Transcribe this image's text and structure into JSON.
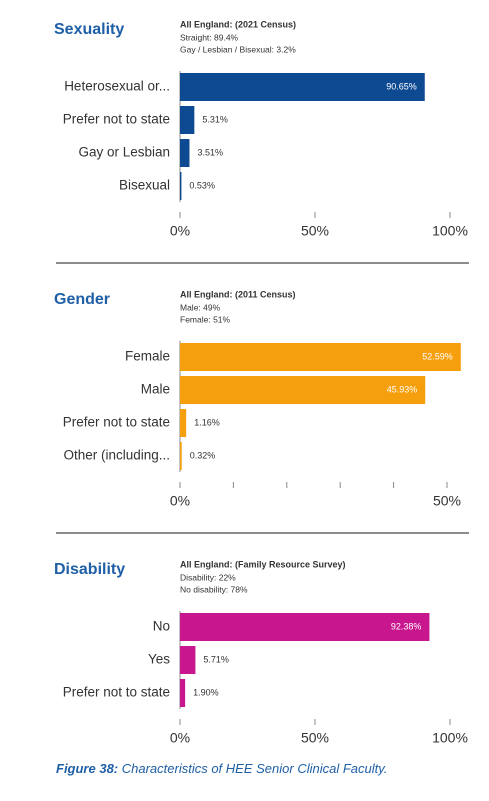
{
  "chart_data": [
    {
      "type": "bar",
      "orientation": "horizontal",
      "title": "Sexuality",
      "annotation": {
        "title": "All England: (2021 Census)",
        "lines": [
          "Straight: 89.4%",
          "Gay / Lesbian / Bisexual: 3.2%"
        ]
      },
      "categories": [
        "Heterosexual or...",
        "Prefer not to state",
        "Gay or Lesbian",
        "Bisexual"
      ],
      "values": [
        90.65,
        5.31,
        3.51,
        0.53
      ],
      "value_labels": [
        "90.65%",
        "5.31%",
        "3.51%",
        "0.53%"
      ],
      "color": "#0d4a92",
      "xlim": [
        0,
        100
      ],
      "xticks": [
        {
          "value": 0,
          "label": "0%"
        },
        {
          "value": 50,
          "label": "50%"
        },
        {
          "value": 100,
          "label": "100%"
        }
      ]
    },
    {
      "type": "bar",
      "orientation": "horizontal",
      "title": "Gender",
      "annotation": {
        "title": "All England: (2011 Census)",
        "lines": [
          "Male: 49%",
          "Female: 51%"
        ]
      },
      "categories": [
        "Female",
        "Male",
        "Prefer not to state",
        "Other (including..."
      ],
      "values": [
        52.59,
        45.93,
        1.16,
        0.32
      ],
      "value_labels": [
        "52.59%",
        "45.93%",
        "1.16%",
        "0.32%"
      ],
      "color": "#f59f0c",
      "xlim": [
        0,
        53
      ],
      "xticks": [
        {
          "value": 0,
          "label": "0%"
        },
        {
          "value": 50,
          "label": "50%"
        }
      ],
      "minor_xticks": [
        10,
        20,
        30,
        40
      ]
    },
    {
      "type": "bar",
      "orientation": "horizontal",
      "title": "Disability",
      "annotation": {
        "title": "All England: (Family Resource Survey)",
        "lines": [
          "Disability: 22%",
          "No disability: 78%"
        ]
      },
      "categories": [
        "No",
        "Yes",
        "Prefer not to state"
      ],
      "values": [
        92.38,
        5.71,
        1.9
      ],
      "value_labels": [
        "92.38%",
        "5.71%",
        "1.90%"
      ],
      "color": "#c8168f",
      "xlim": [
        0,
        100
      ],
      "xticks": [
        {
          "value": 0,
          "label": "0%"
        },
        {
          "value": 50,
          "label": "50%"
        },
        {
          "value": 100,
          "label": "100%"
        }
      ]
    }
  ],
  "caption": {
    "label": "Figure 38:",
    "text": "Characteristics of HEE Senior Clinical Faculty."
  }
}
